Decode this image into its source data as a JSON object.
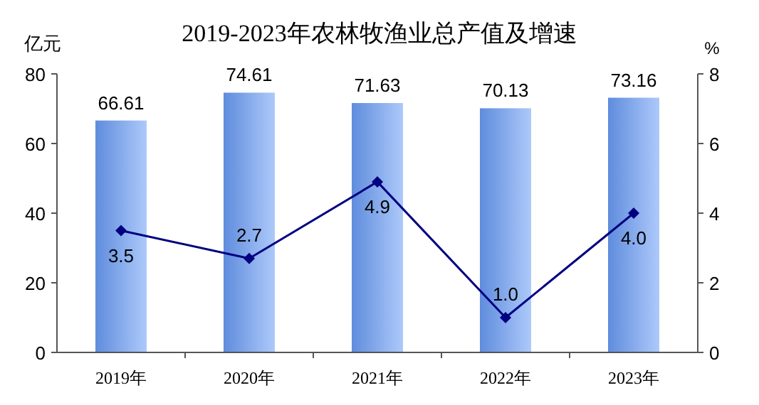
{
  "chart_data": {
    "type": "bar",
    "title": "2019-2023年农林牧渔业总产值及增速",
    "ylabel": "亿元",
    "y2label": "%",
    "categories": [
      "2019年",
      "2020年",
      "2021年",
      "2022年",
      "2023年"
    ],
    "series": [
      {
        "color": "#6a9cf5",
        "values": [
          66.61,
          74.61,
          71.63,
          70.13,
          73.16
        ]
      },
      {
        "type": "line",
        "axis": "y2",
        "color": "#000080",
        "marker": "diamond",
        "values": [
          3.5,
          2.7,
          4.9,
          1.0,
          4.0
        ],
        "value_labels": [
          "3.5",
          "2.7",
          "4.9",
          "1.0",
          "4.0"
        ]
      }
    ],
    "ylim": [
      0,
      80
    ],
    "yticks": [
      0,
      20,
      40,
      60,
      80
    ],
    "y2lim": [
      0,
      8
    ],
    "y2ticks": [
      0,
      2,
      4,
      6,
      8
    ],
    "data_labels": true,
    "grid": false
  }
}
